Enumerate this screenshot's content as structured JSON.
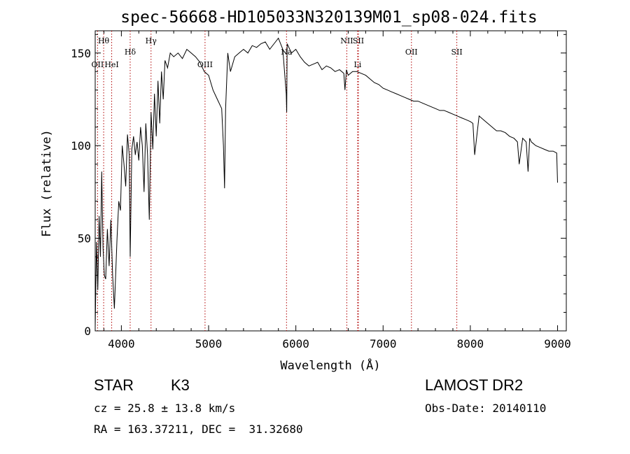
{
  "chart_data": {
    "type": "line",
    "title": "spec-56668-HD105033N320139M01_sp08-024.fits",
    "xlabel": "Wavelength (Å)",
    "ylabel": "Flux (relative)",
    "xlim": [
      3700,
      9100
    ],
    "ylim": [
      0,
      162
    ],
    "xticks": [
      4000,
      5000,
      6000,
      7000,
      8000,
      9000
    ],
    "yticks": [
      0,
      50,
      100,
      150
    ],
    "grid": false,
    "series": [
      {
        "x": [
          3700,
          3715,
          3730,
          3745,
          3760,
          3775,
          3790,
          3805,
          3820,
          3840,
          3860,
          3880,
          3900,
          3920,
          3950,
          3970,
          3990,
          4010,
          4030,
          4050,
          4070,
          4090,
          4101,
          4120,
          4140,
          4160,
          4180,
          4200,
          4220,
          4240,
          4260,
          4280,
          4300,
          4320,
          4340,
          4360,
          4380,
          4400,
          4420,
          4440,
          4460,
          4480,
          4500,
          4530,
          4560,
          4600,
          4650,
          4700,
          4750,
          4800,
          4850,
          4900,
          4950,
          5000,
          5050,
          5100,
          5150,
          5170,
          5183,
          5195,
          5220,
          5250,
          5300,
          5350,
          5400,
          5450,
          5500,
          5550,
          5600,
          5650,
          5700,
          5750,
          5800,
          5850,
          5890,
          5895,
          5900,
          5950,
          6000,
          6050,
          6100,
          6150,
          6200,
          6250,
          6300,
          6350,
          6400,
          6450,
          6500,
          6550,
          6563,
          6580,
          6600,
          6650,
          6700,
          6750,
          6800,
          6850,
          6900,
          6950,
          7000,
          7050,
          7100,
          7150,
          7200,
          7250,
          7300,
          7350,
          7400,
          7450,
          7500,
          7550,
          7600,
          7650,
          7700,
          7750,
          7800,
          7850,
          7900,
          7950,
          8000,
          8030,
          8050,
          8100,
          8150,
          8200,
          8250,
          8300,
          8350,
          8400,
          8450,
          8500,
          8540,
          8560,
          8600,
          8640,
          8662,
          8680,
          8700,
          8750,
          8800,
          8850,
          8900,
          8950,
          8990,
          9000
        ],
        "y": [
          2,
          48,
          22,
          62,
          40,
          86,
          45,
          30,
          28,
          55,
          35,
          60,
          30,
          12,
          50,
          70,
          65,
          100,
          90,
          78,
          106,
          95,
          40,
          98,
          105,
          95,
          102,
          92,
          110,
          100,
          75,
          112,
          95,
          60,
          118,
          98,
          128,
          105,
          135,
          112,
          140,
          125,
          146,
          142,
          150,
          148,
          150,
          147,
          152,
          150,
          148,
          145,
          140,
          138,
          130,
          125,
          120,
          100,
          77,
          120,
          150,
          140,
          148,
          150,
          152,
          150,
          154,
          153,
          155,
          156,
          152,
          155,
          158,
          152,
          128,
          118,
          155,
          150,
          152,
          148,
          145,
          143,
          144,
          145,
          141,
          143,
          142,
          140,
          141,
          139,
          130,
          141,
          138,
          140,
          140,
          139,
          138,
          136,
          134,
          133,
          131,
          130,
          129,
          128,
          127,
          126,
          125,
          124,
          124,
          123,
          122,
          121,
          120,
          119,
          119,
          118,
          117,
          116,
          115,
          114,
          113,
          112,
          95,
          116,
          114,
          112,
          110,
          108,
          108,
          107,
          105,
          104,
          102,
          90,
          104,
          102,
          86,
          104,
          102,
          100,
          99,
          98,
          97,
          97,
          96,
          80
        ]
      }
    ],
    "lines": [
      {
        "label": "Hθ",
        "x": 3797,
        "row": 1
      },
      {
        "label": "OII",
        "x": 3727,
        "row": 3
      },
      {
        "label": "HeI",
        "x": 3889,
        "row": 3
      },
      {
        "label": "Hδ",
        "x": 4101,
        "row": 2
      },
      {
        "label": "Hγ",
        "x": 4340,
        "row": 1
      },
      {
        "label": "OIII",
        "x": 4959,
        "row": 3
      },
      {
        "label": "Na",
        "x": 5893,
        "row": 2
      },
      {
        "label": "NII",
        "x": 6584,
        "row": 1
      },
      {
        "label": "SII",
        "x": 6717,
        "row": 1
      },
      {
        "label": "Li",
        "x": 6708,
        "row": 3
      },
      {
        "label": "OII",
        "x": 7325,
        "row": 2
      },
      {
        "label": "SII",
        "x": 7845,
        "row": 2
      }
    ],
    "colors": {
      "line": "#000000",
      "marker": "#b00000"
    }
  },
  "info": {
    "class": "STAR",
    "subclass": "K3",
    "cz": "cz = 25.8 ± 13.8 km/s",
    "radec": "RA = 163.37211, DEC =  31.32680",
    "survey": "LAMOST DR2",
    "obsdate": "Obs-Date: 20140110"
  }
}
